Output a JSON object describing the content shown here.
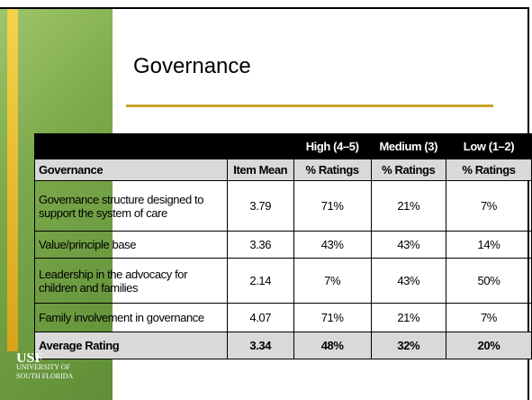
{
  "title": "Governance",
  "table": {
    "group_headers": [
      "High (4–5)",
      "Medium (3)",
      "Low (1–2)"
    ],
    "columns": [
      "Governance",
      "Item Mean",
      "% Ratings",
      "% Ratings",
      "% Ratings"
    ],
    "rows": [
      [
        "Governance structure designed to support the system of care",
        "3.79",
        "71%",
        "21%",
        "7%"
      ],
      [
        "Value/principle base",
        "3.36",
        "43%",
        "43%",
        "14%"
      ],
      [
        "Leadership in the advocacy for children and families",
        "2.14",
        "7%",
        "43%",
        "50%"
      ],
      [
        "Family involvement in governance",
        "4.07",
        "71%",
        "21%",
        "7%"
      ]
    ],
    "summary": [
      "Average Rating",
      "3.34",
      "48%",
      "32%",
      "20%"
    ]
  },
  "logo": {
    "mark": "USF",
    "lines": [
      "UNIVERSITY OF",
      "SOUTH FLORIDA"
    ]
  }
}
